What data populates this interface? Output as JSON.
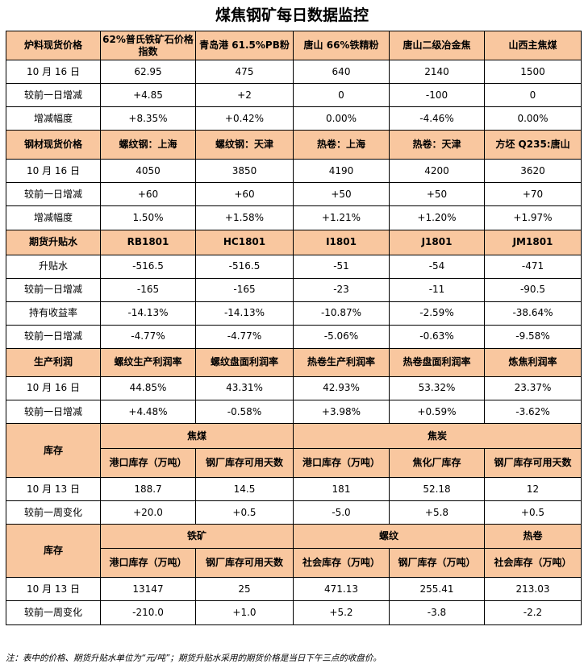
{
  "title": "煤焦钢矿每日数据监控",
  "s1": {
    "header": [
      "炉料现货价格",
      "62%普氏铁矿石价格指数",
      "青岛港 61.5%PB粉",
      "唐山 66%铁精粉",
      "唐山二级冶金焦",
      "山西主焦煤"
    ],
    "rows": [
      {
        "label": "10 月 16 日",
        "cells": [
          {
            "v": "62.95",
            "c": "flat"
          },
          {
            "v": "475",
            "c": "flat"
          },
          {
            "v": "640",
            "c": "flat"
          },
          {
            "v": "2140",
            "c": "flat"
          },
          {
            "v": "1500",
            "c": "flat"
          }
        ]
      },
      {
        "label": "较前一日增减",
        "cells": [
          {
            "v": "+4.85",
            "c": "up"
          },
          {
            "v": "+2",
            "c": "up"
          },
          {
            "v": "0",
            "c": "flat"
          },
          {
            "v": "-100",
            "c": "down"
          },
          {
            "v": "0",
            "c": "flat"
          }
        ]
      },
      {
        "label": "增减幅度",
        "cells": [
          {
            "v": "+8.35%",
            "c": "up"
          },
          {
            "v": "+0.42%",
            "c": "up"
          },
          {
            "v": "0.00%",
            "c": "flat"
          },
          {
            "v": "-4.46%",
            "c": "down"
          },
          {
            "v": "0.00%",
            "c": "flat"
          }
        ]
      }
    ]
  },
  "s2": {
    "header": [
      "钢材现货价格",
      "螺纹钢：上海",
      "螺纹钢：天津",
      "热卷：上海",
      "热卷：天津",
      "方坯 Q235:唐山"
    ],
    "rows": [
      {
        "label": "10 月 16 日",
        "cells": [
          {
            "v": "4050",
            "c": "flat"
          },
          {
            "v": "3850",
            "c": "flat"
          },
          {
            "v": "4190",
            "c": "flat"
          },
          {
            "v": "4200",
            "c": "flat"
          },
          {
            "v": "3620",
            "c": "flat"
          }
        ]
      },
      {
        "label": "较前一日增减",
        "cells": [
          {
            "v": "+60",
            "c": "up"
          },
          {
            "v": "+60",
            "c": "up"
          },
          {
            "v": "+50",
            "c": "up"
          },
          {
            "v": "+50",
            "c": "up"
          },
          {
            "v": "+70",
            "c": "up"
          }
        ]
      },
      {
        "label": "增减幅度",
        "cells": [
          {
            "v": "1.50%",
            "c": "up"
          },
          {
            "v": "+1.58%",
            "c": "up"
          },
          {
            "v": "+1.21%",
            "c": "up"
          },
          {
            "v": "+1.20%",
            "c": "up"
          },
          {
            "v": "+1.97%",
            "c": "up"
          }
        ]
      }
    ]
  },
  "s3": {
    "header": [
      "期货升贴水",
      "RB1801",
      "HC1801",
      "I1801",
      "J1801",
      "JM1801"
    ],
    "rows": [
      {
        "label": "升贴水",
        "cells": [
          {
            "v": "-516.5",
            "c": "flat"
          },
          {
            "v": "-516.5",
            "c": "flat"
          },
          {
            "v": "-51",
            "c": "flat"
          },
          {
            "v": "-54",
            "c": "flat"
          },
          {
            "v": "-471",
            "c": "flat"
          }
        ]
      },
      {
        "label": "较前一日增减",
        "cells": [
          {
            "v": "-165",
            "c": "down"
          },
          {
            "v": "-165",
            "c": "down"
          },
          {
            "v": "-23",
            "c": "down"
          },
          {
            "v": "-11",
            "c": "down"
          },
          {
            "v": "-90.5",
            "c": "down"
          }
        ]
      },
      {
        "label": "持有收益率",
        "cells": [
          {
            "v": "-14.13%",
            "c": "flat"
          },
          {
            "v": "-14.13%",
            "c": "flat"
          },
          {
            "v": "-10.87%",
            "c": "flat"
          },
          {
            "v": "-2.59%",
            "c": "flat"
          },
          {
            "v": "-38.64%",
            "c": "flat"
          }
        ]
      },
      {
        "label": "较前一日增减",
        "cells": [
          {
            "v": "-4.77%",
            "c": "down"
          },
          {
            "v": "-4.77%",
            "c": "down"
          },
          {
            "v": "-5.06%",
            "c": "down"
          },
          {
            "v": "-0.63%",
            "c": "down"
          },
          {
            "v": "-9.58%",
            "c": "down"
          }
        ]
      }
    ]
  },
  "s4": {
    "header": [
      "生产利润",
      "螺纹生产利润率",
      "螺纹盘面利润率",
      "热卷生产利润率",
      "热卷盘面利润率",
      "炼焦利润率"
    ],
    "rows": [
      {
        "label": "10 月 16 日",
        "cells": [
          {
            "v": "44.85%",
            "c": "flat"
          },
          {
            "v": "43.31%",
            "c": "flat"
          },
          {
            "v": "42.93%",
            "c": "flat"
          },
          {
            "v": "53.32%",
            "c": "flat"
          },
          {
            "v": "23.37%",
            "c": "flat"
          }
        ]
      },
      {
        "label": "较前一日增减",
        "cells": [
          {
            "v": "+4.48%",
            "c": "up"
          },
          {
            "v": "-0.58%",
            "c": "down"
          },
          {
            "v": "+3.98%",
            "c": "up"
          },
          {
            "v": "+0.59%",
            "c": "up"
          },
          {
            "v": "-3.62%",
            "c": "down"
          }
        ]
      }
    ]
  },
  "s5": {
    "label": "库存",
    "groups": [
      "焦煤",
      "焦炭"
    ],
    "header": [
      "港口库存（万吨）",
      "钢厂库存可用天数",
      "港口库存（万吨）",
      "焦化厂库存",
      "钢厂库存可用天数"
    ],
    "rows": [
      {
        "label": "10 月 13 日",
        "cells": [
          {
            "v": "188.7",
            "c": "flat"
          },
          {
            "v": "14.5",
            "c": "flat"
          },
          {
            "v": "181",
            "c": "flat"
          },
          {
            "v": "52.18",
            "c": "flat"
          },
          {
            "v": "12",
            "c": "flat"
          }
        ]
      },
      {
        "label": "较前一周变化",
        "cells": [
          {
            "v": "+20.0",
            "c": "up"
          },
          {
            "v": "+0.5",
            "c": "up"
          },
          {
            "v": "-5.0",
            "c": "down"
          },
          {
            "v": "+5.8",
            "c": "up"
          },
          {
            "v": "+0.5",
            "c": "up"
          }
        ]
      }
    ]
  },
  "s6": {
    "label": "库存",
    "groups": [
      "铁矿",
      "螺纹",
      "热卷"
    ],
    "header": [
      "港口库存（万吨）",
      "钢厂库存可用天数",
      "社会库存（万吨）",
      "钢厂库存（万吨）",
      "社会库存（万吨）"
    ],
    "rows": [
      {
        "label": "10 月 13 日",
        "cells": [
          {
            "v": "13147",
            "c": "flat"
          },
          {
            "v": "25",
            "c": "flat"
          },
          {
            "v": "471.13",
            "c": "flat"
          },
          {
            "v": "255.41",
            "c": "flat"
          },
          {
            "v": "213.03",
            "c": "flat"
          }
        ]
      },
      {
        "label": "较前一周变化",
        "cells": [
          {
            "v": "-210.0",
            "c": "down"
          },
          {
            "v": "+1.0",
            "c": "up"
          },
          {
            "v": "+5.2",
            "c": "up"
          },
          {
            "v": "-3.8",
            "c": "down"
          },
          {
            "v": "-2.2",
            "c": "down"
          }
        ]
      }
    ]
  },
  "footer": "注：表中的价格、期货升贴水单位为“元/吨”；期货升贴水采用的期货价格是当日下午三点的收盘价。"
}
